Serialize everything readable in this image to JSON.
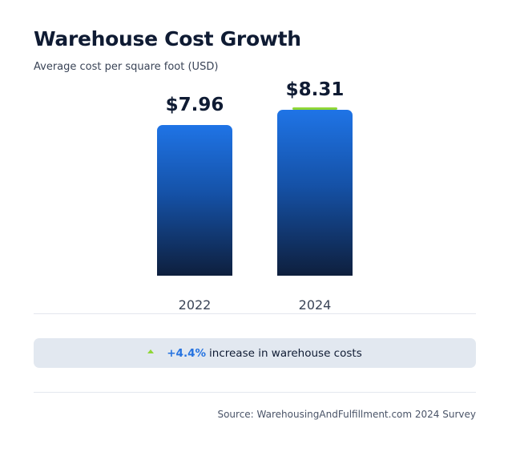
{
  "header": {
    "title": "Warehouse Cost Growth",
    "subtitle": "Average cost per square foot (USD)"
  },
  "chart_data": {
    "type": "bar",
    "title": "Warehouse Cost Growth",
    "subtitle": "Average cost per square foot (USD)",
    "categories": [
      "2022",
      "2024"
    ],
    "values": [
      7.96,
      8.31
    ],
    "value_labels": [
      "$7.96",
      "$8.31"
    ],
    "ylim": [
      4.5,
      8.31
    ],
    "grid": false,
    "colors": {
      "bar_top": "#1f74e6",
      "bar_bottom": "#0e1f3d",
      "highlight": "#8fd636"
    }
  },
  "callout": {
    "icon": "triangle-up-icon",
    "percent": "+4.4%",
    "text": "increase in warehouse costs"
  },
  "footer": {
    "source": "Source: WarehousingAndFulfillment.com 2024 Survey"
  }
}
